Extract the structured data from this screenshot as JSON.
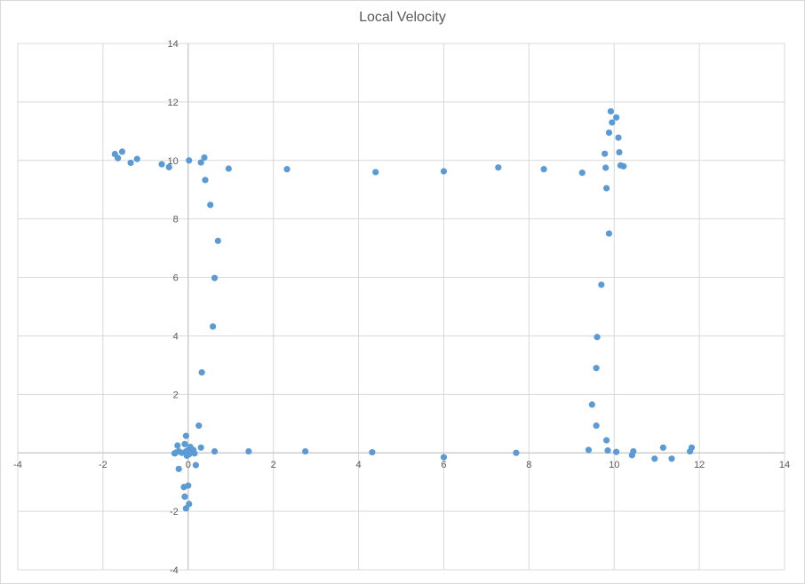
{
  "chart_data": {
    "type": "scatter",
    "title": "Local Velocity",
    "xlabel": "",
    "ylabel": "",
    "xlim": [
      -4,
      14
    ],
    "ylim": [
      -4,
      14
    ],
    "xticks": [
      -4,
      -2,
      0,
      2,
      4,
      6,
      8,
      10,
      12,
      14
    ],
    "yticks": [
      -4,
      -2,
      0,
      2,
      4,
      6,
      8,
      10,
      12,
      14
    ],
    "grid": true,
    "legend": "none",
    "marker_color": "#5b9bd5",
    "series": [
      {
        "points": [
          [
            -1.72,
            10.22
          ],
          [
            -1.65,
            10.08
          ],
          [
            -1.55,
            10.3
          ],
          [
            -1.35,
            9.92
          ],
          [
            -1.2,
            10.05
          ],
          [
            -0.62,
            9.87
          ],
          [
            -0.45,
            9.77
          ],
          [
            0.02,
            10.0
          ],
          [
            0.3,
            9.93
          ],
          [
            0.38,
            10.1
          ],
          [
            0.4,
            9.33
          ],
          [
            0.95,
            9.72
          ],
          [
            2.32,
            9.7
          ],
          [
            4.4,
            9.6
          ],
          [
            6.0,
            9.63
          ],
          [
            7.28,
            9.76
          ],
          [
            8.35,
            9.7
          ],
          [
            9.25,
            9.58
          ],
          [
            9.8,
            9.75
          ],
          [
            9.82,
            9.05
          ],
          [
            9.92,
            11.68
          ],
          [
            9.95,
            11.3
          ],
          [
            10.05,
            11.47
          ],
          [
            9.88,
            10.95
          ],
          [
            10.1,
            10.78
          ],
          [
            10.12,
            10.28
          ],
          [
            9.78,
            10.23
          ],
          [
            10.15,
            9.83
          ],
          [
            10.22,
            9.8
          ],
          [
            9.88,
            7.5
          ],
          [
            0.52,
            8.48
          ],
          [
            0.7,
            7.25
          ],
          [
            0.62,
            5.98
          ],
          [
            0.58,
            4.32
          ],
          [
            0.32,
            2.75
          ],
          [
            9.7,
            5.75
          ],
          [
            9.6,
            3.96
          ],
          [
            9.58,
            2.9
          ],
          [
            9.48,
            1.65
          ],
          [
            9.58,
            0.93
          ],
          [
            9.82,
            0.43
          ],
          [
            9.85,
            0.08
          ],
          [
            10.05,
            0.03
          ],
          [
            9.4,
            0.1
          ],
          [
            10.42,
            -0.08
          ],
          [
            10.45,
            0.05
          ],
          [
            10.95,
            -0.2
          ],
          [
            11.15,
            0.18
          ],
          [
            11.35,
            -0.2
          ],
          [
            11.78,
            0.05
          ],
          [
            11.82,
            0.18
          ],
          [
            0.25,
            0.93
          ],
          [
            0.62,
            0.05
          ],
          [
            1.42,
            0.05
          ],
          [
            2.75,
            0.05
          ],
          [
            4.32,
            0.02
          ],
          [
            6.0,
            -0.15
          ],
          [
            7.7,
            0.0
          ],
          [
            -0.05,
            0.58
          ],
          [
            -0.08,
            0.3
          ],
          [
            -0.25,
            0.25
          ],
          [
            -0.22,
            0.05
          ],
          [
            -0.15,
            0.0
          ],
          [
            -0.05,
            0.05
          ],
          [
            -0.03,
            -0.1
          ],
          [
            0.0,
            0.1
          ],
          [
            0.05,
            0.2
          ],
          [
            0.1,
            0.05
          ],
          [
            0.12,
            0.1
          ],
          [
            0.15,
            -0.02
          ],
          [
            0.02,
            -0.05
          ],
          [
            0.08,
            0.02
          ],
          [
            0.3,
            0.18
          ],
          [
            -0.32,
            -0.02
          ],
          [
            0.18,
            -0.42
          ],
          [
            -0.22,
            -0.55
          ],
          [
            0.0,
            -1.12
          ],
          [
            -0.1,
            -1.17
          ],
          [
            -0.08,
            -1.5
          ],
          [
            0.02,
            -1.75
          ],
          [
            -0.05,
            -1.9
          ]
        ]
      }
    ]
  }
}
